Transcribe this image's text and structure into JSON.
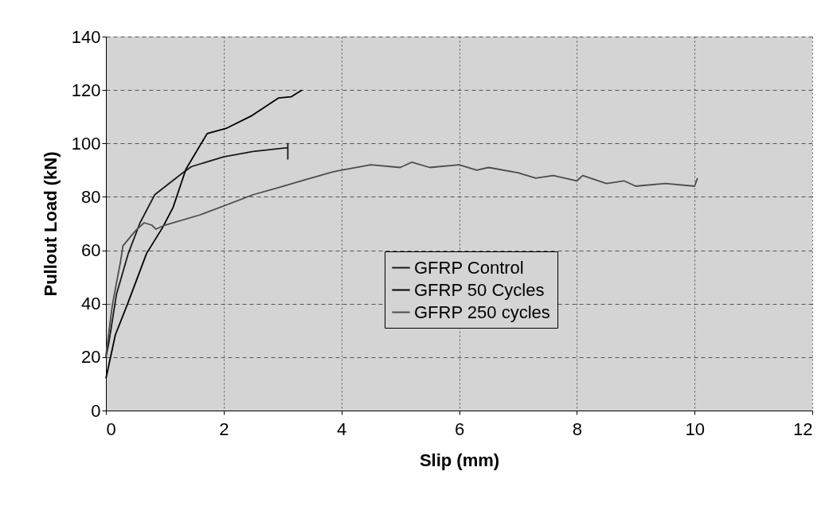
{
  "chart_data": {
    "type": "line",
    "xlabel": "Slip (mm)",
    "ylabel": "Pullout Load (kN)",
    "xlim": [
      0,
      12
    ],
    "xticks": [
      0,
      2,
      4,
      6,
      8,
      10,
      12
    ],
    "ylim": [
      0,
      140
    ],
    "yticks": [
      0,
      20,
      40,
      60,
      80,
      100,
      120,
      140
    ],
    "grid": true,
    "legend": "bottom",
    "marker": "none",
    "series": [
      {
        "name": "GFRP Control",
        "color": "#1a1a1a",
        "x": [
          0,
          0.05,
          0.18,
          0.38,
          0.58,
          0.83,
          1.27,
          1.45,
          2,
          2.5,
          3.09,
          3.09,
          3.09
        ],
        "values": [
          20,
          25.4,
          43.6,
          58.8,
          70.3,
          80.8,
          88.4,
          91.3,
          95,
          97,
          98.4,
          100,
          94
        ]
      },
      {
        "name": "GFRP 50 Cycles",
        "color": "#000000",
        "x": [
          0,
          0.16,
          0.38,
          0.69,
          0.96,
          1.14,
          1.36,
          1.72,
          2.04,
          2.48,
          2.93,
          3.15,
          3.33
        ],
        "values": [
          12,
          28.3,
          40.6,
          58.8,
          68.4,
          76,
          90.4,
          103.7,
          105.6,
          110.4,
          117,
          117.5,
          120
        ]
      },
      {
        "name": "GFRP 250 cycles",
        "color": "#4d4d4d",
        "x": [
          0,
          0.11,
          0.25,
          0.29,
          0.51,
          0.65,
          0.78,
          0.85,
          1,
          1.59,
          2.05,
          2.5,
          2.95,
          3.4,
          3.85,
          4,
          4.5,
          5,
          5.2,
          5.5,
          6,
          6.3,
          6.5,
          7,
          7.3,
          7.6,
          8,
          8.1,
          8.5,
          8.8,
          9,
          9.5,
          10,
          10.05
        ],
        "values": [
          20.6,
          39.6,
          56,
          61.7,
          67.5,
          70.3,
          69.4,
          67.9,
          69.4,
          73.2,
          77,
          80.8,
          83.6,
          86.5,
          89.3,
          90,
          92,
          91,
          93,
          91,
          92,
          90,
          91,
          89,
          87,
          88,
          86,
          88,
          85,
          86,
          84,
          85,
          84,
          87
        ]
      }
    ]
  }
}
